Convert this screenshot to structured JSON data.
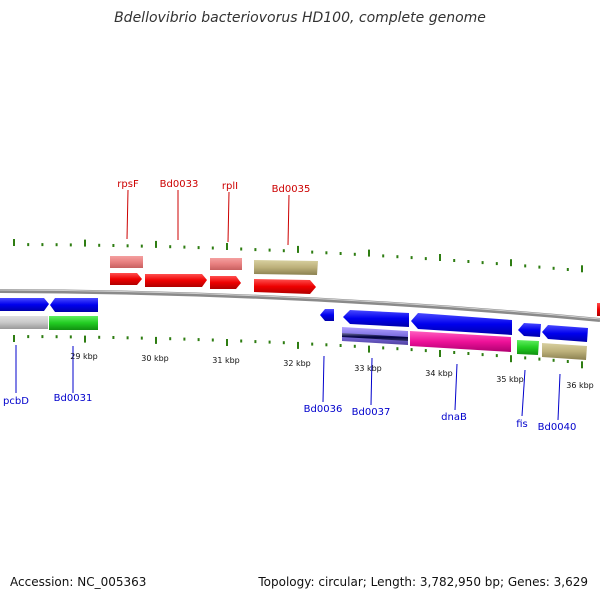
{
  "title": "Bdellovibrio bacteriovorus HD100, complete genome",
  "footer": {
    "accession": "Accession: NC_005363",
    "summary": "Topology: circular; Length: 3,782,950 bp; Genes: 3,629"
  },
  "colors": {
    "top_label": "#cc0000",
    "bottom_label": "#0000cc",
    "tick": "#2e7d12",
    "backbone": "#8a8a8a"
  },
  "kbp_labels": [
    "29 kbp",
    "30 kbp",
    "31 kbp",
    "32 kbp",
    "33 kbp",
    "34 kbp",
    "35 kbp",
    "36 kbp"
  ],
  "top_gene_labels": [
    "rpsF",
    "Bd0033",
    "rplI",
    "Bd0035"
  ],
  "bottom_gene_labels": [
    "pcbD",
    "Bd0031",
    "Bd0036",
    "Bd0037",
    "dnaB",
    "fis",
    "Bd0040"
  ]
}
